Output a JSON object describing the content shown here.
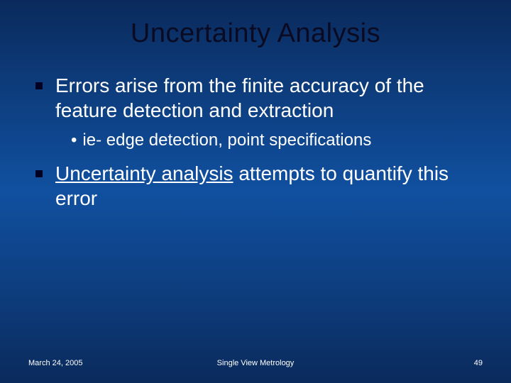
{
  "slide": {
    "title": "Uncertainty Analysis",
    "title_fontsize": 38,
    "title_color": "#0a0a22",
    "background_gradient": [
      "#0a2a5c",
      "#0d3a78",
      "#1050a0",
      "#0d3a78",
      "#0a2a5c"
    ],
    "bullets": [
      {
        "level": 1,
        "text": "Errors arise from the finite accuracy of the feature detection and extraction",
        "fontsize": 28,
        "sub": [
          {
            "text": "ie- edge detection, point specifications",
            "fontsize": 24
          }
        ]
      },
      {
        "level": 1,
        "html_parts": [
          {
            "text": "Uncertainty analysis",
            "underline": true
          },
          {
            "text": " attempts to quantify this error",
            "underline": false
          }
        ],
        "fontsize": 28
      }
    ],
    "bullet_square_color": "#000022",
    "text_color": "#ffffff"
  },
  "footer": {
    "date": "March 24, 2005",
    "center": "Single View Metrology",
    "page": "49",
    "fontsize": 11
  }
}
